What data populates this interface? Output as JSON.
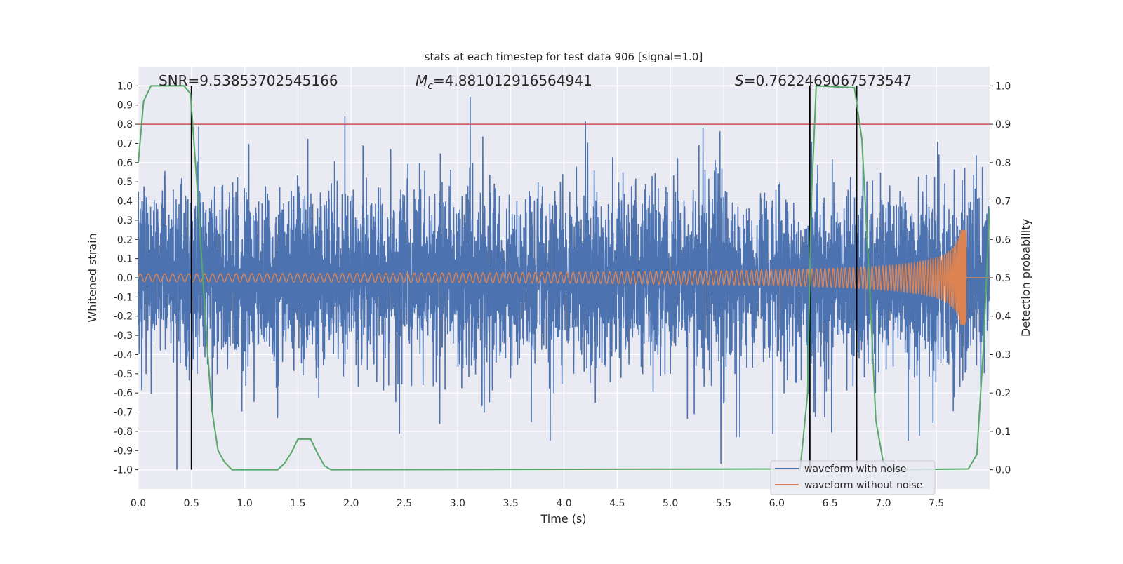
{
  "chart_data": {
    "type": "line",
    "title": "stats at each timestep for test data 906 [signal=1.0]",
    "xlabel": "Time (s)",
    "ylabel": "Whitened strain",
    "ylabel_right": "Detection probability",
    "xlim": [
      0,
      8.0
    ],
    "ylim": [
      -1.1,
      1.1
    ],
    "ylim_right": [
      -0.05,
      1.05
    ],
    "xticks": [
      "0.0",
      "0.5",
      "1.0",
      "1.5",
      "2.0",
      "2.5",
      "3.0",
      "3.5",
      "4.0",
      "4.5",
      "5.0",
      "5.5",
      "6.0",
      "6.5",
      "7.0",
      "7.5"
    ],
    "yticks": [
      "-1.0",
      "-0.9",
      "-0.8",
      "-0.7",
      "-0.6",
      "-0.5",
      "-0.4",
      "-0.3",
      "-0.2",
      "-0.1",
      "0.0",
      "0.1",
      "0.2",
      "0.3",
      "0.4",
      "0.5",
      "0.6",
      "0.7",
      "0.8",
      "0.9",
      "1.0"
    ],
    "yticks_right": [
      "0.0",
      "0.1",
      "0.2",
      "0.3",
      "0.4",
      "0.5",
      "0.6",
      "0.7",
      "0.8",
      "0.9",
      "1.0"
    ],
    "grid": true,
    "annotations": {
      "snr": "SNR=9.53853702545166",
      "mc_symbol": "M",
      "mc_sub": "c",
      "mc_value": "=4.881012916564941",
      "s_symbol": "S",
      "s_value": "=0.7622469067573547"
    },
    "legend": {
      "placement": "lower-right",
      "entries": [
        "waveform with noise",
        "waveform without noise"
      ]
    },
    "series": [
      {
        "name": "waveform with noise",
        "color": "#4c72b0",
        "kind": "noise",
        "std": 0.2,
        "clip": 1.0,
        "samples": 6000,
        "seed": 906
      },
      {
        "name": "waveform without noise",
        "color": "#dd8452",
        "kind": "chirp",
        "f0_hz": 13,
        "amp0": 0.02,
        "amp_max": 0.25,
        "t_coalesce": 7.78
      },
      {
        "name": "detection probability",
        "color": "#55a868",
        "axis": "right",
        "t": [
          0.0,
          0.05,
          0.12,
          0.43,
          0.49,
          0.55,
          0.65,
          0.69,
          0.75,
          0.81,
          0.88,
          1.31,
          1.37,
          1.44,
          1.5,
          1.55,
          1.62,
          1.68,
          1.75,
          1.81,
          6.22,
          6.29,
          6.32,
          6.37,
          6.73,
          6.8,
          6.87,
          6.93,
          7.0,
          7.08,
          7.8,
          7.88,
          7.94,
          8.0
        ],
        "p": [
          0.8,
          0.96,
          1.0,
          1.0,
          0.98,
          0.75,
          0.31,
          0.16,
          0.05,
          0.02,
          0.0,
          0.0,
          0.015,
          0.045,
          0.08,
          0.08,
          0.08,
          0.045,
          0.01,
          0.0,
          0.002,
          0.2,
          0.67,
          1.0,
          0.995,
          0.86,
          0.49,
          0.13,
          0.02,
          0.0,
          0.002,
          0.04,
          0.31,
          0.68
        ]
      },
      {
        "name": "threshold",
        "color": "#c44e52",
        "axis": "right",
        "kind": "hline",
        "value": 0.9
      }
    ],
    "vlines": {
      "color": "#000000",
      "axis": "right",
      "t": [
        0.5,
        6.31,
        6.75
      ],
      "from": 0.0,
      "to": 1.0
    }
  }
}
